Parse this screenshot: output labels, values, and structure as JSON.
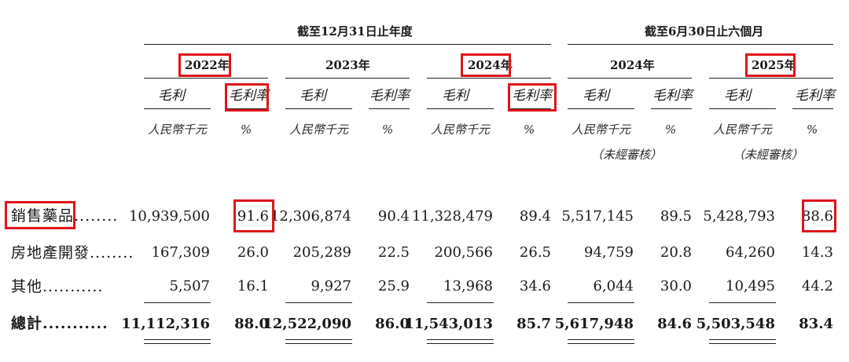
{
  "header": {
    "fy_label": "截至12月31日止年度",
    "hy_label": "截至6月30日止六個月",
    "years": [
      "2022年",
      "2023年",
      "2024年",
      "2024年",
      "2025年"
    ]
  },
  "columns": {
    "gross_profit": "毛利",
    "gross_margin": "毛利率",
    "unit_rmb": "人民幣千元",
    "unit_pct": "%",
    "unaudited": "（未經審核）"
  },
  "rows": [
    {
      "label": "銷售藥品",
      "dots": "........",
      "values": [
        "10,939,500",
        "91.6",
        "12,306,874",
        "90.4",
        "11,328,479",
        "89.4",
        "5,517,145",
        "89.5",
        "5,428,793",
        "88.6"
      ]
    },
    {
      "label": "房地產開發",
      "dots": "........",
      "values": [
        "167,309",
        "26.0",
        "205,289",
        "22.5",
        "200,566",
        "26.5",
        "94,759",
        "20.8",
        "64,260",
        "14.3"
      ]
    },
    {
      "label": "其他",
      "dots": "...........",
      "values": [
        "5,507",
        "16.1",
        "9,927",
        "25.9",
        "13,968",
        "34.6",
        "6,044",
        "30.0",
        "10,495",
        "44.2"
      ]
    },
    {
      "label": "總計",
      "dots": "...........",
      "values": [
        "11,112,316",
        "88.0",
        "12,522,090",
        "86.0",
        "11,543,013",
        "85.7",
        "5,617,948",
        "84.6",
        "5,503,548",
        "83.4"
      ]
    }
  ],
  "colors": {
    "highlight": "#e0141c",
    "text": "#1a1a1a"
  }
}
